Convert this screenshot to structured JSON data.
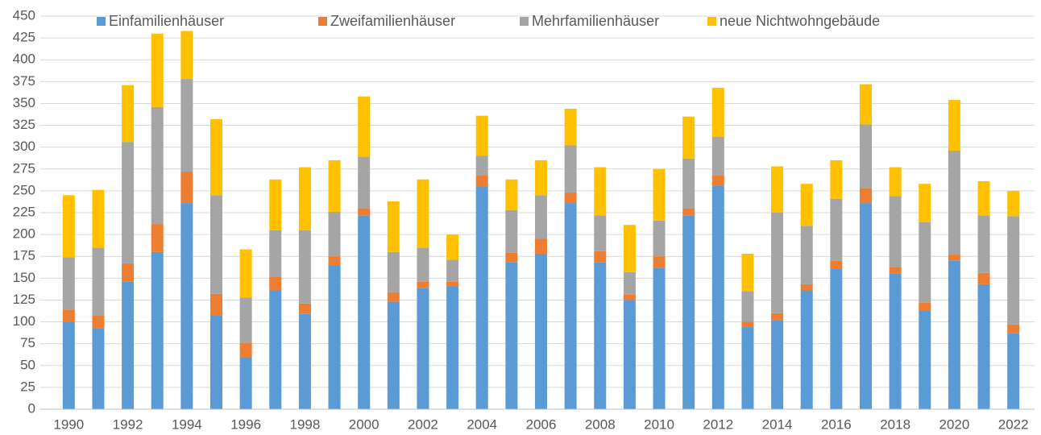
{
  "chart_data": {
    "type": "stacked_bar",
    "categories": [
      "1990",
      null,
      "1992",
      null,
      "1994",
      null,
      "1996",
      null,
      "1998",
      null,
      "2000",
      null,
      "2002",
      null,
      "2004",
      null,
      "2006",
      null,
      "2008",
      null,
      "2010",
      null,
      "2012",
      null,
      "2014",
      null,
      "2016",
      null,
      "2018",
      null,
      "2020",
      null,
      "2022"
    ],
    "series": [
      {
        "name": "Einfamilienhäuser",
        "color": "#5b9bd5",
        "values": [
          100,
          93,
          146,
          180,
          236,
          107,
          59,
          136,
          109,
          165,
          222,
          123,
          139,
          141,
          255,
          168,
          178,
          236,
          168,
          125,
          162,
          222,
          256,
          94,
          102,
          136,
          161,
          236,
          155,
          113,
          170,
          143,
          87
        ]
      },
      {
        "name": "Zweifamilienhäuser",
        "color": "#ed7d31",
        "values": [
          14,
          14,
          21,
          32,
          36,
          25,
          17,
          16,
          12,
          10,
          8,
          11,
          7,
          5,
          13,
          11,
          17,
          12,
          13,
          6,
          13,
          8,
          12,
          6,
          8,
          7,
          9,
          17,
          8,
          9,
          7,
          13,
          10
        ]
      },
      {
        "name": "Mehrfamilienhäuser",
        "color": "#a5a5a5",
        "values": [
          60,
          78,
          139,
          134,
          106,
          113,
          52,
          53,
          84,
          51,
          59,
          46,
          39,
          25,
          22,
          49,
          50,
          54,
          41,
          26,
          41,
          57,
          44,
          35,
          115,
          67,
          71,
          73,
          81,
          92,
          119,
          66,
          124
        ]
      },
      {
        "name": "neue Nichtwohngebäude",
        "color": "#ffc000",
        "values": [
          71,
          66,
          65,
          84,
          55,
          87,
          55,
          58,
          72,
          59,
          69,
          58,
          78,
          29,
          46,
          35,
          40,
          42,
          55,
          54,
          59,
          48,
          56,
          43,
          53,
          48,
          44,
          46,
          33,
          44,
          58,
          39,
          29
        ]
      }
    ],
    "ylim": [
      0,
      450
    ],
    "yticks": [
      0,
      25,
      50,
      75,
      100,
      125,
      150,
      175,
      200,
      225,
      250,
      275,
      300,
      325,
      350,
      375,
      400,
      425,
      450
    ],
    "grid": true,
    "legend": "top"
  }
}
